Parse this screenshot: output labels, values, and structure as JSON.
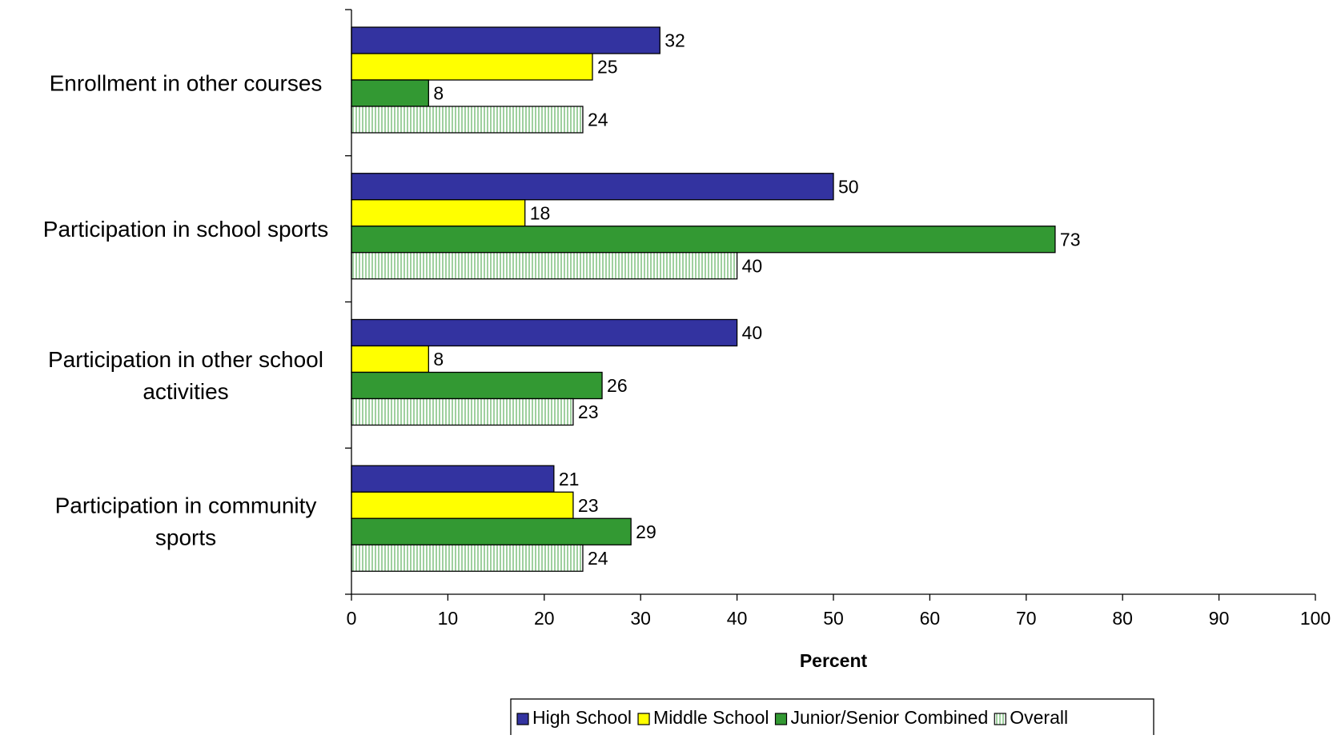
{
  "chart_data": {
    "type": "bar",
    "orientation": "horizontal",
    "categories": [
      "Enrollment in other courses",
      "Participation in school sports",
      "Participation in other school activities",
      "Participation in community sports"
    ],
    "category_label_lines": [
      [
        "Enrollment in other courses"
      ],
      [
        "Participation in school sports"
      ],
      [
        "Participation in other school",
        "activities"
      ],
      [
        "Participation in community",
        "sports"
      ]
    ],
    "series": [
      {
        "name": "High School",
        "values": [
          32,
          50,
          40,
          21
        ],
        "color": "#3333a0",
        "pattern": "solid"
      },
      {
        "name": "Middle School",
        "values": [
          25,
          18,
          8,
          23
        ],
        "color": "#ffff00",
        "pattern": "solid"
      },
      {
        "name": "Junior/Senior Combined",
        "values": [
          8,
          73,
          26,
          29
        ],
        "color": "#339933",
        "pattern": "solid"
      },
      {
        "name": "Overall",
        "values": [
          24,
          40,
          23,
          24
        ],
        "color": "#c8ecc8",
        "pattern": "vertical-lines"
      }
    ],
    "data_labels": true,
    "title": "",
    "xlabel": "Percent",
    "ylabel": "",
    "xlim": [
      0,
      100
    ],
    "x_ticks": [
      0,
      10,
      20,
      30,
      40,
      50,
      60,
      70,
      80,
      90,
      100
    ],
    "grid": false,
    "legend_position": "bottom"
  }
}
